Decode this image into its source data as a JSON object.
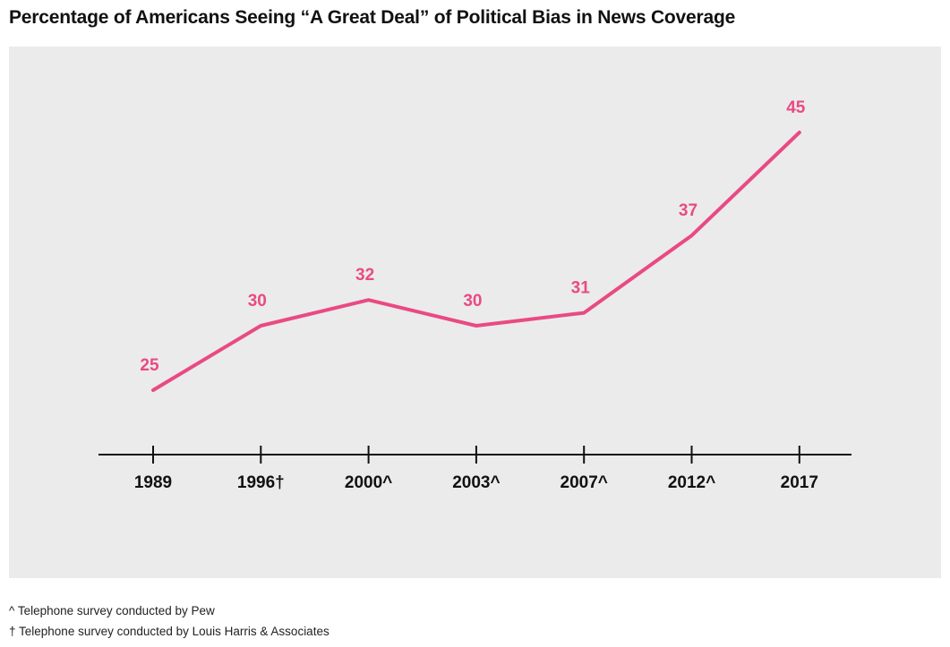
{
  "title": "Percentage of Americans Seeing “A Great Deal” of Political Bias in News Coverage",
  "colors": {
    "line": "#e94a83",
    "background": "#ebebeb",
    "axis": "#111111"
  },
  "notes": [
    "^ Telephone survey conducted by Pew",
    "† Telephone survey conducted by Louis Harris & Associates"
  ],
  "chart_data": {
    "type": "line",
    "title": "Percentage of Americans Seeing “A Great Deal” of Political Bias in News Coverage",
    "categories": [
      "1989",
      "1996†",
      "2000^",
      "2003^",
      "2007^",
      "2012^",
      "2017"
    ],
    "values": [
      25,
      30,
      32,
      30,
      31,
      37,
      45
    ],
    "data_labels": [
      "25",
      "30",
      "32",
      "30",
      "31",
      "37",
      "45"
    ],
    "xlabel": "",
    "ylabel": "",
    "grid": false,
    "legend": "none"
  }
}
